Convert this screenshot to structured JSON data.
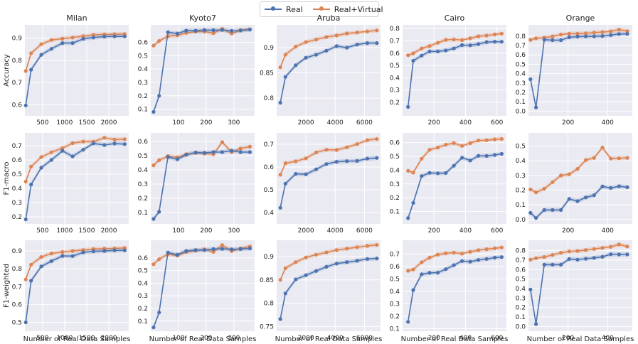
{
  "colors": {
    "real": "#4c72b0",
    "virtual": "#dd8452",
    "panel_bg": "#eaeaf2",
    "grid": "#ffffff",
    "text": "#222222"
  },
  "legend": {
    "real_label": "Real",
    "virtual_label": "Real+Virtual"
  },
  "x_axis_label": "Number of Real Data Samples",
  "chart_data": [
    {
      "type": "line",
      "title": "Milan",
      "ylabel": "Accuracy",
      "xlim": [
        100,
        2450
      ],
      "ylim": [
        0.55,
        0.96
      ],
      "xticks": [
        500,
        1000,
        1500,
        2000
      ],
      "yticks": [
        0.6,
        0.7,
        0.8,
        0.9
      ],
      "x": [
        120,
        240,
        470,
        700,
        950,
        1180,
        1420,
        1650,
        1900,
        2130,
        2360
      ],
      "series": [
        {
          "name": "Real",
          "values": [
            0.597,
            0.758,
            0.825,
            0.852,
            0.878,
            0.878,
            0.897,
            0.903,
            0.907,
            0.908,
            0.908
          ]
        },
        {
          "name": "Real+Virtual",
          "values": [
            0.752,
            0.832,
            0.873,
            0.892,
            0.898,
            0.903,
            0.909,
            0.915,
            0.917,
            0.918,
            0.919
          ]
        }
      ]
    },
    {
      "type": "line",
      "title": "Kyoto7",
      "ylabel": "",
      "xlim": [
        0,
        375
      ],
      "ylim": [
        0.05,
        0.73
      ],
      "xticks": [
        100,
        200,
        300
      ],
      "yticks": [
        0.1,
        0.2,
        0.3,
        0.4,
        0.5,
        0.6
      ],
      "x": [
        10,
        30,
        62,
        96,
        128,
        162,
        194,
        226,
        258,
        292,
        324,
        358
      ],
      "series": [
        {
          "name": "Real",
          "values": [
            0.08,
            0.2,
            0.675,
            0.665,
            0.687,
            0.687,
            0.692,
            0.69,
            0.692,
            0.685,
            0.688,
            0.695
          ]
        },
        {
          "name": "Real+Virtual",
          "values": [
            0.575,
            0.61,
            0.645,
            0.652,
            0.67,
            0.68,
            0.68,
            0.668,
            0.7,
            0.665,
            0.69,
            0.697
          ]
        }
      ]
    },
    {
      "type": "line",
      "title": "Aruba",
      "ylabel": "",
      "xlim": [
        0,
        7100
      ],
      "ylim": [
        0.765,
        0.945
      ],
      "xticks": [
        2000,
        4000,
        6000
      ],
      "yticks": [
        0.8,
        0.85,
        0.9
      ],
      "x": [
        250,
        600,
        1300,
        2000,
        2700,
        3400,
        4100,
        4800,
        5500,
        6200,
        6850
      ],
      "series": [
        {
          "name": "Real",
          "values": [
            0.791,
            0.842,
            0.865,
            0.88,
            0.886,
            0.894,
            0.903,
            0.9,
            0.906,
            0.909,
            0.909
          ]
        },
        {
          "name": "Real+Virtual",
          "values": [
            0.861,
            0.886,
            0.902,
            0.911,
            0.916,
            0.921,
            0.924,
            0.928,
            0.93,
            0.932,
            0.934
          ]
        }
      ]
    },
    {
      "type": "line",
      "title": "Cairo",
      "ylabel": "",
      "xlim": [
        0,
        660
      ],
      "ylim": [
        0.09,
        0.83
      ],
      "xticks": [
        200,
        400,
        600
      ],
      "yticks": [
        0.2,
        0.3,
        0.4,
        0.5,
        0.6,
        0.7,
        0.8
      ],
      "x": [
        35,
        68,
        121,
        172,
        224,
        275,
        326,
        378,
        430,
        482,
        534,
        586,
        630
      ],
      "series": [
        {
          "name": "Real",
          "values": [
            0.163,
            0.538,
            0.58,
            0.614,
            0.614,
            0.622,
            0.638,
            0.665,
            0.664,
            0.674,
            0.69,
            0.693,
            0.693
          ]
        },
        {
          "name": "Real+Virtual",
          "values": [
            0.583,
            0.599,
            0.638,
            0.658,
            0.685,
            0.708,
            0.711,
            0.706,
            0.721,
            0.737,
            0.743,
            0.752,
            0.759
          ]
        }
      ]
    },
    {
      "type": "line",
      "title": "Orange",
      "ylabel": "",
      "xlim": [
        0,
        525
      ],
      "ylim": [
        -0.05,
        0.92
      ],
      "xticks": [
        200,
        400
      ],
      "yticks": [
        0.0,
        0.1,
        0.2,
        0.3,
        0.4,
        0.5,
        0.6,
        0.7,
        0.8
      ],
      "x": [
        10,
        38,
        80,
        122,
        164,
        206,
        248,
        290,
        332,
        374,
        416,
        458,
        500
      ],
      "series": [
        {
          "name": "Real",
          "values": [
            0.34,
            0.04,
            0.762,
            0.757,
            0.757,
            0.788,
            0.795,
            0.797,
            0.798,
            0.801,
            0.811,
            0.823,
            0.824
          ]
        },
        {
          "name": "Real+Virtual",
          "values": [
            0.76,
            0.777,
            0.785,
            0.797,
            0.816,
            0.826,
            0.827,
            0.83,
            0.838,
            0.843,
            0.85,
            0.869,
            0.853
          ]
        }
      ]
    },
    {
      "type": "line",
      "title": "",
      "ylabel": "F1-macro",
      "xlim": [
        100,
        2450
      ],
      "ylim": [
        0.15,
        0.79
      ],
      "xticks": [
        500,
        1000,
        1500,
        2000
      ],
      "yticks": [
        0.2,
        0.3,
        0.4,
        0.5,
        0.6,
        0.7
      ],
      "x": [
        120,
        240,
        470,
        700,
        950,
        1180,
        1420,
        1650,
        1900,
        2130,
        2360
      ],
      "series": [
        {
          "name": "Real",
          "values": [
            0.182,
            0.427,
            0.545,
            0.6,
            0.664,
            0.625,
            0.672,
            0.716,
            0.705,
            0.715,
            0.711
          ]
        },
        {
          "name": "Real+Virtual",
          "values": [
            0.448,
            0.553,
            0.62,
            0.654,
            0.683,
            0.718,
            0.729,
            0.728,
            0.756,
            0.743,
            0.746
          ]
        }
      ]
    },
    {
      "type": "line",
      "title": "",
      "ylabel": "",
      "xlim": [
        0,
        375
      ],
      "ylim": [
        0.02,
        0.66
      ],
      "xticks": [
        100,
        200,
        300
      ],
      "yticks": [
        0.1,
        0.2,
        0.3,
        0.4,
        0.5,
        0.6
      ],
      "x": [
        10,
        30,
        62,
        96,
        128,
        162,
        194,
        226,
        258,
        292,
        324,
        358
      ],
      "series": [
        {
          "name": "Real",
          "values": [
            0.055,
            0.105,
            0.49,
            0.475,
            0.506,
            0.522,
            0.52,
            0.525,
            0.525,
            0.535,
            0.525,
            0.525
          ]
        },
        {
          "name": "Real+Virtual",
          "values": [
            0.432,
            0.468,
            0.497,
            0.488,
            0.51,
            0.52,
            0.515,
            0.51,
            0.595,
            0.525,
            0.55,
            0.563
          ]
        }
      ]
    },
    {
      "type": "line",
      "title": "",
      "ylabel": "",
      "xlim": [
        0,
        7100
      ],
      "ylim": [
        0.35,
        0.75
      ],
      "xticks": [
        2000,
        4000,
        6000
      ],
      "yticks": [
        0.4,
        0.5,
        0.6,
        0.7
      ],
      "x": [
        250,
        600,
        1300,
        2000,
        2700,
        3400,
        4100,
        4800,
        5500,
        6200,
        6850
      ],
      "series": [
        {
          "name": "Real",
          "values": [
            0.421,
            0.527,
            0.57,
            0.568,
            0.59,
            0.613,
            0.623,
            0.626,
            0.627,
            0.637,
            0.64
          ]
        },
        {
          "name": "Real+Virtual",
          "values": [
            0.566,
            0.617,
            0.625,
            0.638,
            0.664,
            0.676,
            0.675,
            0.687,
            0.701,
            0.718,
            0.723
          ]
        }
      ]
    },
    {
      "type": "line",
      "title": "",
      "ylabel": "",
      "xlim": [
        0,
        660
      ],
      "ylim": [
        0.01,
        0.67
      ],
      "xticks": [
        200,
        400,
        600
      ],
      "yticks": [
        0.1,
        0.2,
        0.3,
        0.4,
        0.5,
        0.6
      ],
      "x": [
        35,
        68,
        121,
        172,
        224,
        275,
        326,
        378,
        430,
        482,
        534,
        586,
        630
      ],
      "series": [
        {
          "name": "Real",
          "values": [
            0.052,
            0.162,
            0.357,
            0.38,
            0.377,
            0.379,
            0.432,
            0.49,
            0.47,
            0.504,
            0.503,
            0.51,
            0.518
          ]
        },
        {
          "name": "Real+Virtual",
          "values": [
            0.395,
            0.382,
            0.483,
            0.548,
            0.564,
            0.585,
            0.596,
            0.576,
            0.596,
            0.615,
            0.617,
            0.623,
            0.626
          ]
        }
      ]
    },
    {
      "type": "line",
      "title": "",
      "ylabel": "",
      "xlim": [
        0,
        525
      ],
      "ylim": [
        -0.03,
        0.59
      ],
      "xticks": [
        200,
        400
      ],
      "yticks": [
        0.0,
        0.1,
        0.2,
        0.3,
        0.4,
        0.5
      ],
      "x": [
        10,
        38,
        80,
        122,
        164,
        206,
        248,
        290,
        332,
        374,
        416,
        458,
        500
      ],
      "series": [
        {
          "name": "Real",
          "values": [
            0.045,
            0.01,
            0.065,
            0.065,
            0.065,
            0.14,
            0.125,
            0.15,
            0.165,
            0.225,
            0.215,
            0.226,
            0.22
          ]
        },
        {
          "name": "Real+Virtual",
          "values": [
            0.205,
            0.185,
            0.21,
            0.255,
            0.3,
            0.308,
            0.345,
            0.405,
            0.42,
            0.49,
            0.415,
            0.417,
            0.42
          ]
        }
      ]
    },
    {
      "type": "line",
      "title": "",
      "ylabel": "F1-weighted",
      "xlim": [
        100,
        2450
      ],
      "ylim": [
        0.45,
        0.96
      ],
      "xticks": [
        500,
        1000,
        1500,
        2000
      ],
      "yticks": [
        0.5,
        0.6,
        0.7,
        0.8,
        0.9
      ],
      "x": [
        120,
        240,
        470,
        700,
        950,
        1180,
        1420,
        1650,
        1900,
        2130,
        2360
      ],
      "series": [
        {
          "name": "Real",
          "values": [
            0.5,
            0.733,
            0.813,
            0.843,
            0.872,
            0.871,
            0.892,
            0.898,
            0.9,
            0.903,
            0.903
          ]
        },
        {
          "name": "Real+Virtual",
          "values": [
            0.74,
            0.823,
            0.866,
            0.886,
            0.894,
            0.9,
            0.905,
            0.911,
            0.913,
            0.914,
            0.917
          ]
        }
      ]
    },
    {
      "type": "line",
      "title": "",
      "ylabel": "",
      "xlim": [
        0,
        375
      ],
      "ylim": [
        0.02,
        0.74
      ],
      "xticks": [
        100,
        200,
        300
      ],
      "yticks": [
        0.1,
        0.2,
        0.3,
        0.4,
        0.5,
        0.6
      ],
      "x": [
        10,
        30,
        62,
        96,
        128,
        162,
        194,
        226,
        258,
        292,
        324,
        358
      ],
      "series": [
        {
          "name": "Real",
          "values": [
            0.05,
            0.168,
            0.642,
            0.625,
            0.655,
            0.662,
            0.662,
            0.67,
            0.672,
            0.668,
            0.67,
            0.675
          ]
        },
        {
          "name": "Real+Virtual",
          "values": [
            0.55,
            0.59,
            0.63,
            0.618,
            0.647,
            0.658,
            0.668,
            0.648,
            0.702,
            0.655,
            0.675,
            0.69
          ]
        }
      ]
    },
    {
      "type": "line",
      "title": "",
      "ylabel": "",
      "xlim": [
        0,
        7100
      ],
      "ylim": [
        0.74,
        0.935
      ],
      "xticks": [
        2000,
        4000,
        6000
      ],
      "yticks": [
        0.75,
        0.8,
        0.85,
        0.9
      ],
      "x": [
        250,
        600,
        1300,
        2000,
        2700,
        3400,
        4100,
        4800,
        5500,
        6200,
        6850
      ],
      "series": [
        {
          "name": "Real",
          "values": [
            0.766,
            0.821,
            0.851,
            0.86,
            0.869,
            0.878,
            0.885,
            0.888,
            0.891,
            0.895,
            0.896
          ]
        },
        {
          "name": "Real+Virtual",
          "values": [
            0.85,
            0.875,
            0.888,
            0.898,
            0.904,
            0.909,
            0.914,
            0.917,
            0.92,
            0.923,
            0.925
          ]
        }
      ]
    },
    {
      "type": "line",
      "title": "",
      "ylabel": "",
      "xlim": [
        0,
        660
      ],
      "ylim": [
        0.08,
        0.81
      ],
      "xticks": [
        200,
        400,
        600
      ],
      "yticks": [
        0.1,
        0.2,
        0.3,
        0.4,
        0.5,
        0.6,
        0.7
      ],
      "x": [
        35,
        68,
        121,
        172,
        224,
        275,
        326,
        378,
        430,
        482,
        534,
        586,
        630
      ],
      "series": [
        {
          "name": "Real",
          "values": [
            0.155,
            0.41,
            0.537,
            0.548,
            0.55,
            0.578,
            0.61,
            0.643,
            0.638,
            0.652,
            0.66,
            0.67,
            0.675
          ]
        },
        {
          "name": "Real+Virtual",
          "values": [
            0.565,
            0.575,
            0.633,
            0.67,
            0.695,
            0.705,
            0.71,
            0.703,
            0.717,
            0.73,
            0.738,
            0.745,
            0.752
          ]
        }
      ]
    },
    {
      "type": "line",
      "title": "",
      "ylabel": "",
      "xlim": [
        0,
        525
      ],
      "ylim": [
        -0.05,
        0.91
      ],
      "xticks": [
        200,
        400
      ],
      "yticks": [
        0.0,
        0.1,
        0.2,
        0.3,
        0.4,
        0.5,
        0.6,
        0.7,
        0.8
      ],
      "x": [
        10,
        38,
        80,
        122,
        164,
        206,
        248,
        290,
        332,
        374,
        416,
        458,
        500
      ],
      "series": [
        {
          "name": "Real",
          "values": [
            0.39,
            0.025,
            0.652,
            0.652,
            0.652,
            0.712,
            0.705,
            0.715,
            0.723,
            0.735,
            0.762,
            0.76,
            0.76
          ]
        },
        {
          "name": "Real+Virtual",
          "values": [
            0.705,
            0.72,
            0.733,
            0.755,
            0.778,
            0.792,
            0.797,
            0.806,
            0.818,
            0.83,
            0.84,
            0.865,
            0.844
          ]
        }
      ]
    }
  ]
}
